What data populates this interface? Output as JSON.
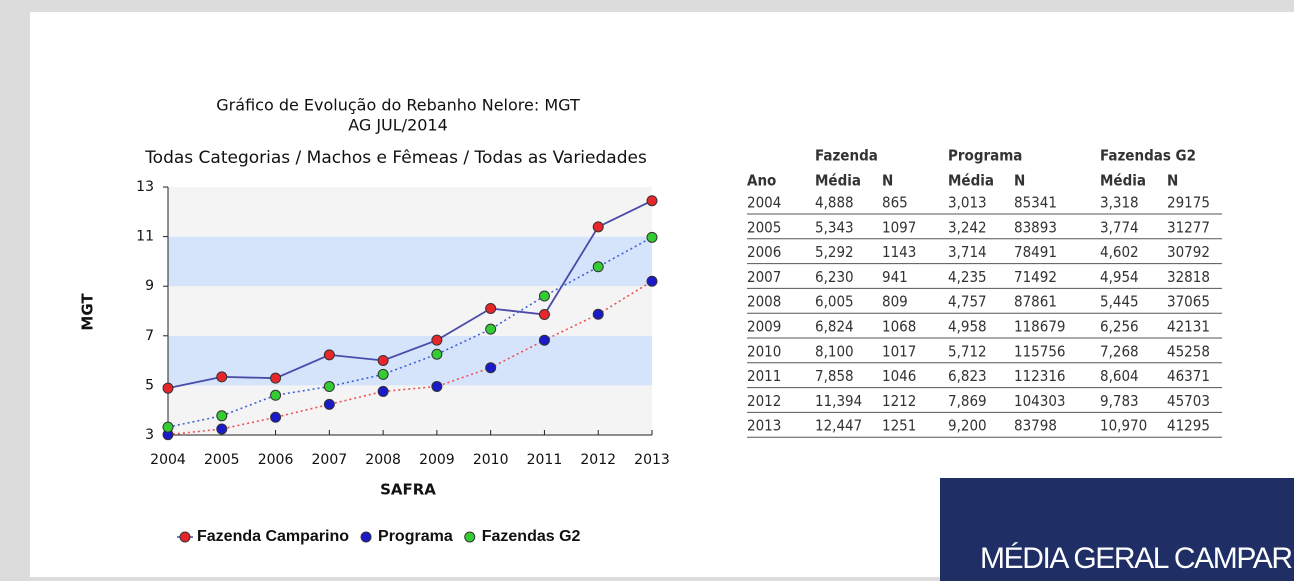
{
  "chart_data": {
    "type": "line",
    "title": "Gráfico de Evolução do Rebanho Nelore: MGT",
    "title2": "AG JUL/2014",
    "subtitle": "Todas Categorias / Machos e Fêmeas / Todas as Variedades",
    "x_label": "SAFRA",
    "y_label": "MGT",
    "categories": [
      "2004",
      "2005",
      "2006",
      "2007",
      "2008",
      "2009",
      "2010",
      "2011",
      "2012",
      "2013"
    ],
    "ylim": [
      3,
      13
    ],
    "yticks": [
      3,
      5,
      7,
      9,
      11,
      13
    ],
    "bands": true,
    "legend": "bottom",
    "series": [
      {
        "name": "Fazenda Camparino",
        "color": "#e8262a",
        "line_color": "#4a4aa8",
        "line_style": "solid",
        "values": [
          4.888,
          5.343,
          5.292,
          6.23,
          6.005,
          6.824,
          8.1,
          7.858,
          11.394,
          12.447
        ],
        "value_labels": [
          "4,888",
          "5,343",
          "5,292",
          "6,230",
          "6,005",
          "6,824",
          "8,100",
          "7,858",
          "11,394",
          "12,447"
        ],
        "n": [
          865,
          1097,
          1143,
          941,
          809,
          1068,
          1017,
          1046,
          1212,
          1251
        ]
      },
      {
        "name": "Programa",
        "color": "#1a1acb",
        "line_color": "#f05050",
        "line_style": "dotted",
        "values": [
          3.013,
          3.242,
          3.714,
          4.235,
          4.757,
          4.958,
          5.712,
          6.823,
          7.869,
          9.2
        ],
        "value_labels": [
          "3,013",
          "3,242",
          "3,714",
          "4,235",
          "4,757",
          "4,958",
          "5,712",
          "6,823",
          "7,869",
          "9,200"
        ],
        "n": [
          85341,
          83893,
          78491,
          71492,
          87861,
          118679,
          115756,
          112316,
          104303,
          83798
        ]
      },
      {
        "name": "Fazendas G2",
        "color": "#33cc33",
        "line_color": "#4060d8",
        "line_style": "dotted",
        "values": [
          3.318,
          3.774,
          4.602,
          4.954,
          5.445,
          6.256,
          7.268,
          8.604,
          9.783,
          10.97
        ],
        "value_labels": [
          "3,318",
          "3,774",
          "4,602",
          "4,954",
          "5,445",
          "6,256",
          "7,268",
          "8,604",
          "9,783",
          "10,970"
        ],
        "n": [
          29175,
          31277,
          30792,
          32818,
          37065,
          42131,
          45258,
          46371,
          45703,
          41295
        ]
      }
    ]
  },
  "table": {
    "year_header": "Ano",
    "groups": [
      {
        "label": "Fazenda",
        "mean": "Média",
        "n": "N"
      },
      {
        "label": "Programa",
        "mean": "Média",
        "n": "N"
      },
      {
        "label": "Fazendas G2",
        "mean": "Média",
        "n": "N"
      }
    ]
  },
  "banner": {
    "text": "MÉDIA GERAL CAMPARI"
  }
}
